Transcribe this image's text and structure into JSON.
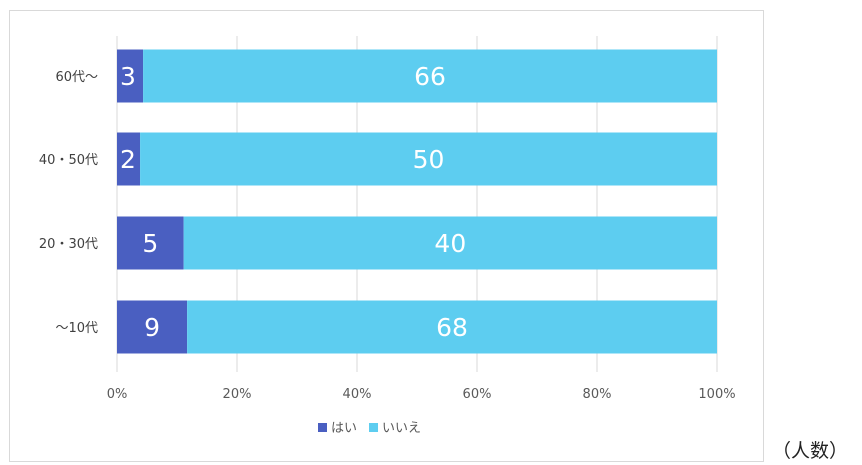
{
  "chart_data": {
    "type": "bar",
    "orientation": "horizontal",
    "stacked": "percent",
    "categories": [
      "60代～",
      "40・50代",
      "20・30代",
      "～10代"
    ],
    "series": [
      {
        "name": "はい",
        "values": [
          3,
          2,
          5,
          9
        ],
        "color": "#4a5fc1"
      },
      {
        "name": "いいえ",
        "values": [
          66,
          50,
          40,
          68
        ],
        "color": "#5dcdf0"
      }
    ],
    "x_ticks": [
      "0%",
      "20%",
      "40%",
      "60%",
      "80%",
      "100%"
    ],
    "xlim": [
      0,
      100
    ],
    "grid": true,
    "legend": "bottom",
    "unit_note": "（人数）"
  }
}
